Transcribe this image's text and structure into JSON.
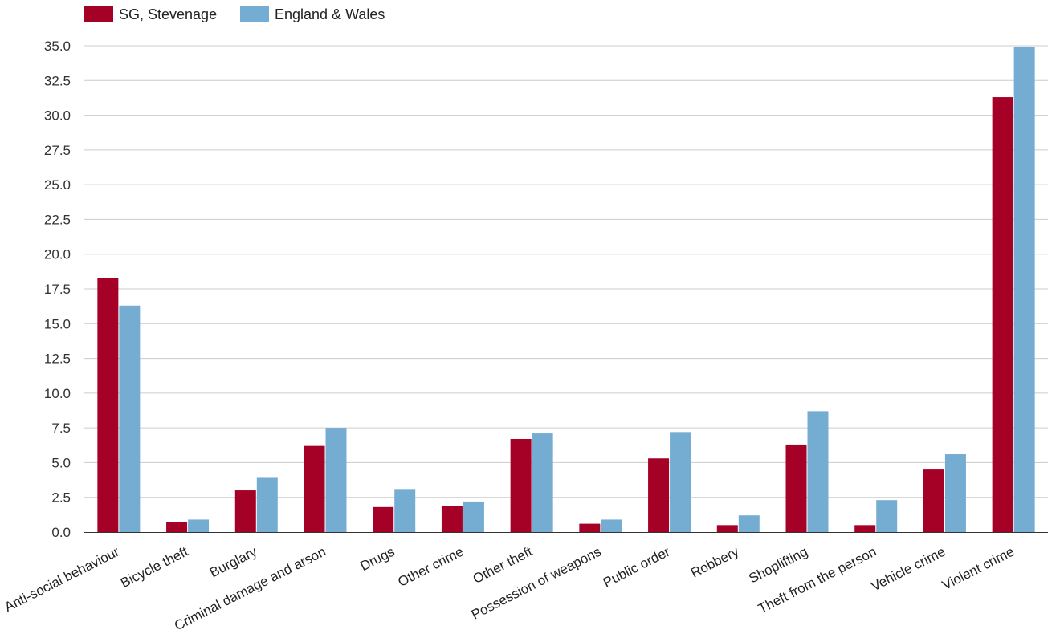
{
  "chart_data": {
    "type": "bar",
    "title": "",
    "xlabel": "",
    "ylabel": "",
    "ylim": [
      0,
      35
    ],
    "yticks": [
      "0.0",
      "2.5",
      "5.0",
      "7.5",
      "10.0",
      "12.5",
      "15.0",
      "17.5",
      "20.0",
      "22.5",
      "25.0",
      "27.5",
      "30.0",
      "32.5",
      "35.0"
    ],
    "grid": true,
    "legend_position": "top-left",
    "categories": [
      "Anti-social behaviour",
      "Bicycle theft",
      "Burglary",
      "Criminal damage and arson",
      "Drugs",
      "Other crime",
      "Other theft",
      "Possession of weapons",
      "Public order",
      "Robbery",
      "Shoplifting",
      "Theft from the person",
      "Vehicle crime",
      "Violent crime"
    ],
    "series": [
      {
        "name": "SG, Stevenage",
        "color": "#a50026",
        "values": [
          18.3,
          0.7,
          3.0,
          6.2,
          1.8,
          1.9,
          6.7,
          0.6,
          5.3,
          0.5,
          6.3,
          0.5,
          4.5,
          31.3
        ]
      },
      {
        "name": "England & Wales",
        "color": "#74add1",
        "values": [
          16.3,
          0.9,
          3.9,
          7.5,
          3.1,
          2.2,
          7.1,
          0.9,
          7.2,
          1.2,
          8.7,
          2.3,
          5.6,
          34.9
        ]
      }
    ]
  }
}
